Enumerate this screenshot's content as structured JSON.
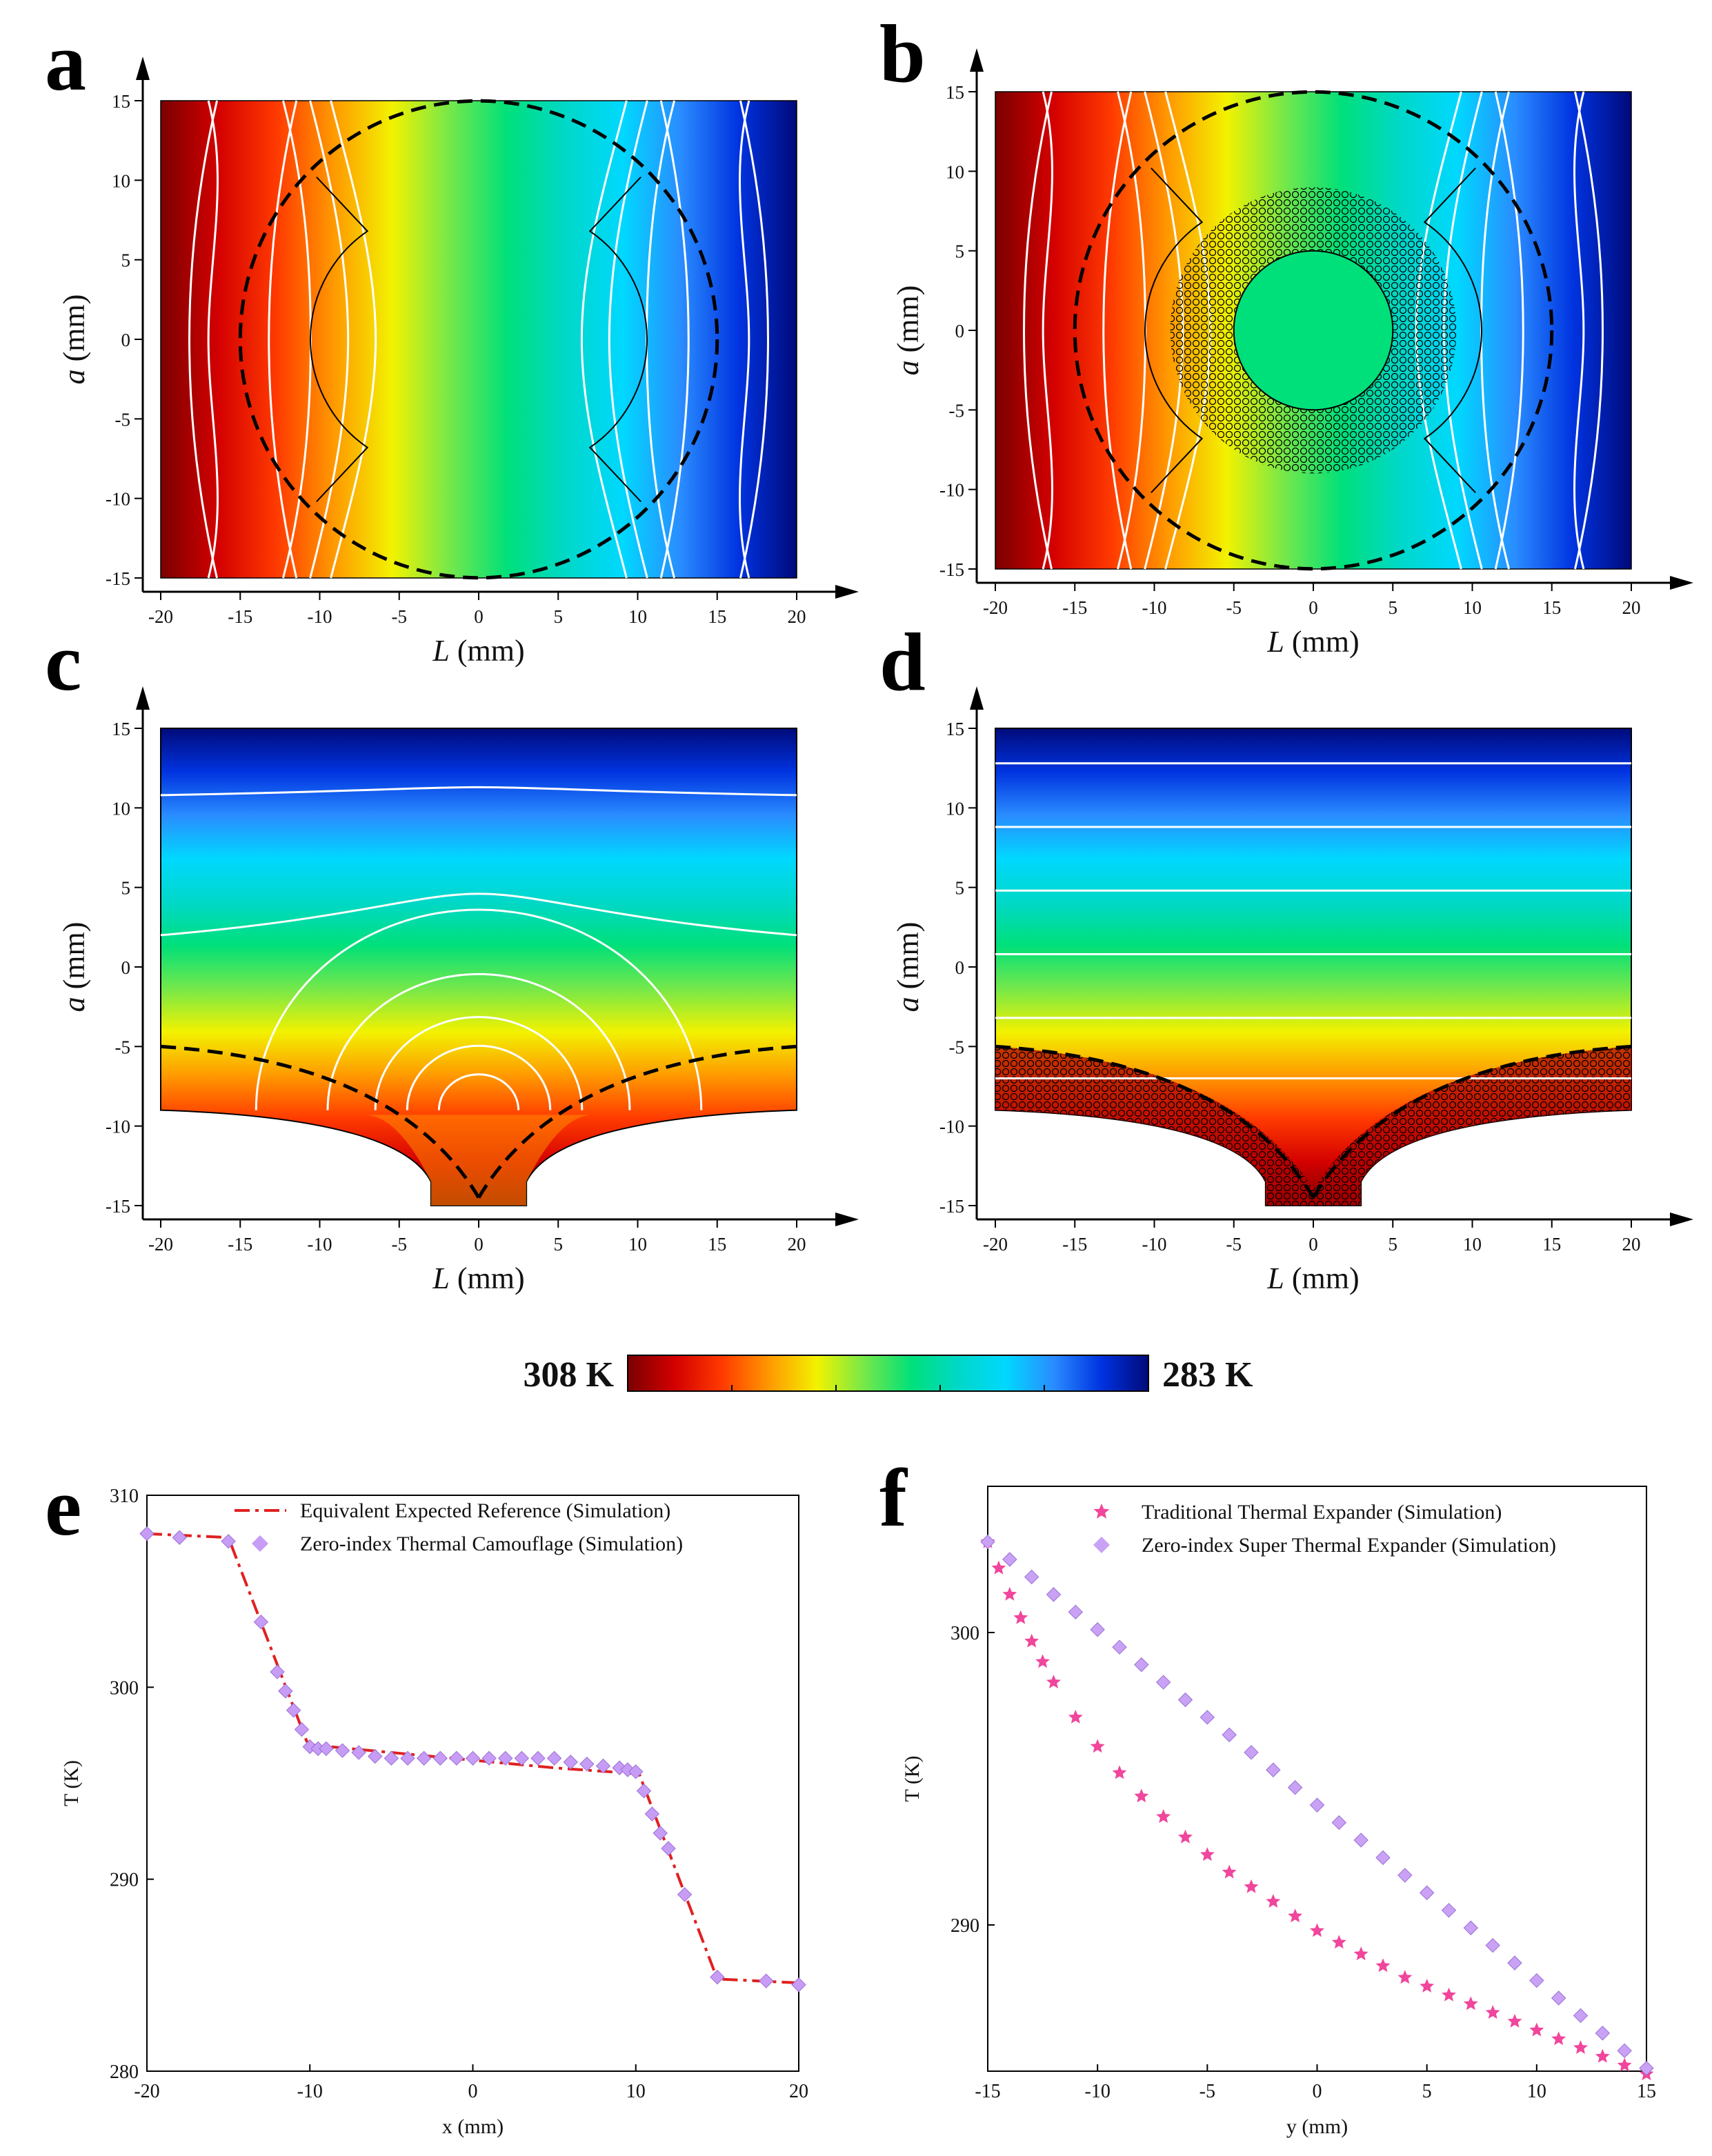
{
  "colors": {
    "colormap": [
      "#7a0000",
      "#d40000",
      "#ff3a00",
      "#ff9a00",
      "#f2f200",
      "#74e84a",
      "#00e07a",
      "#00d8c8",
      "#00d8ff",
      "#2a8cff",
      "#0033e0",
      "#000a7a"
    ],
    "isotherm": "#ffffff",
    "boundary": "#000000",
    "reference_line": "#e02020",
    "camouflage_marker": "#c79cf5",
    "traditional_marker": "#f0469c",
    "super_marker": "#c9a2f5"
  },
  "colorbar": {
    "max_label": "308 K",
    "min_label": "283 K",
    "colors": [
      "#7a0000",
      "#d40000",
      "#ff3a00",
      "#ff9a00",
      "#f2f200",
      "#74e84a",
      "#00e07a",
      "#00d8c8",
      "#00d8ff",
      "#2a8cff",
      "#0033e0",
      "#000a7a"
    ]
  },
  "chart_data": [
    {
      "panel": "a",
      "type": "heatmap",
      "xlabel_symbol": "L",
      "xlabel_unit": " (mm)",
      "ylabel_symbol": "a",
      "ylabel_unit": " (mm)",
      "xlim": [
        -20,
        20
      ],
      "ylim": [
        -15,
        15
      ],
      "xticks": [
        -20,
        -15,
        -10,
        -5,
        0,
        5,
        10,
        15,
        20
      ],
      "yticks": [
        -15,
        -10,
        -5,
        0,
        5,
        10,
        15
      ],
      "hot_side": "left",
      "max_K": 308,
      "min_K": 283
    },
    {
      "panel": "b",
      "type": "heatmap",
      "xlabel_symbol": "L",
      "xlabel_unit": " (mm)",
      "ylabel_symbol": "a",
      "ylabel_unit": " (mm)",
      "xlim": [
        -20,
        20
      ],
      "ylim": [
        -15,
        15
      ],
      "xticks": [
        -20,
        -15,
        -10,
        -5,
        0,
        5,
        10,
        15,
        20
      ],
      "yticks": [
        -15,
        -10,
        -5,
        0,
        5,
        10,
        15
      ],
      "hot_side": "left",
      "max_K": 308,
      "min_K": 283
    },
    {
      "panel": "c",
      "type": "heatmap",
      "xlabel_symbol": "L",
      "xlabel_unit": " (mm)",
      "ylabel_symbol": "a",
      "ylabel_unit": " (mm)",
      "xlim": [
        -20,
        20
      ],
      "ylim": [
        -15,
        15
      ],
      "xticks": [
        -20,
        -15,
        -10,
        -5,
        0,
        5,
        10,
        15,
        20
      ],
      "yticks": [
        -15,
        -10,
        -5,
        0,
        5,
        10,
        15
      ],
      "hot_side": "bottom",
      "max_K": 308,
      "min_K": 283
    },
    {
      "panel": "d",
      "type": "heatmap",
      "xlabel_symbol": "L",
      "xlabel_unit": " (mm)",
      "ylabel_symbol": "a",
      "ylabel_unit": " (mm)",
      "xlim": [
        -20,
        20
      ],
      "ylim": [
        -15,
        15
      ],
      "xticks": [
        -20,
        -15,
        -10,
        -5,
        0,
        5,
        10,
        15,
        20
      ],
      "yticks": [
        -15,
        -10,
        -5,
        0,
        5,
        10,
        15
      ],
      "hot_side": "bottom",
      "max_K": 308,
      "min_K": 283
    },
    {
      "panel": "e",
      "type": "line",
      "xlabel": "x (mm)",
      "ylabel": "T (K)",
      "xlim": [
        -20,
        20
      ],
      "ylim": [
        280,
        310
      ],
      "xticks": [
        -20,
        -10,
        0,
        10,
        20
      ],
      "yticks": [
        280,
        290,
        300,
        310
      ],
      "series": [
        {
          "name": "Equivalent Expected Reference (Simulation)",
          "style": "dash-dot",
          "x": [
            -20,
            -15,
            -10.2,
            -10,
            -5,
            0,
            5,
            10,
            10.2,
            15,
            20
          ],
          "y": [
            308,
            307.8,
            297.2,
            297.0,
            296.6,
            296.2,
            295.8,
            295.5,
            295.5,
            284.8,
            284.6
          ]
        },
        {
          "name": "Zero-index Thermal Camouflage (Simulation)",
          "style": "diamond",
          "x": [
            -20,
            -18,
            -15,
            -13,
            -12,
            -11.5,
            -11,
            -10.5,
            -10,
            -9.5,
            -9,
            -8,
            -7,
            -6,
            -5,
            -4,
            -3,
            -2,
            -1,
            0,
            1,
            2,
            3,
            4,
            5,
            6,
            7,
            8,
            9,
            9.5,
            10,
            10.5,
            11,
            11.5,
            12,
            13,
            15,
            18,
            20
          ],
          "y": [
            308,
            307.8,
            307.6,
            303.4,
            300.8,
            299.8,
            298.8,
            297.8,
            296.9,
            296.8,
            296.8,
            296.7,
            296.6,
            296.4,
            296.3,
            296.3,
            296.3,
            296.3,
            296.3,
            296.3,
            296.3,
            296.3,
            296.3,
            296.3,
            296.3,
            296.1,
            296.0,
            295.9,
            295.8,
            295.7,
            295.6,
            294.6,
            293.4,
            292.4,
            291.6,
            289.2,
            284.9,
            284.7,
            284.5
          ]
        }
      ]
    },
    {
      "panel": "f",
      "type": "scatter",
      "xlabel": "y (mm)",
      "ylabel": "T (K)",
      "xlim": [
        -15,
        15
      ],
      "ylim": [
        285,
        305
      ],
      "xticks": [
        -15,
        -10,
        -5,
        0,
        5,
        10,
        15
      ],
      "yticks": [
        290,
        300
      ],
      "series": [
        {
          "name": "Traditional Thermal Expander (Simulation)",
          "style": "star",
          "x": [
            -15,
            -14.5,
            -14,
            -13.5,
            -13,
            -12.5,
            -12,
            -11,
            -10,
            -9,
            -8,
            -7,
            -6,
            -5,
            -4,
            -3,
            -2,
            -1,
            0,
            1,
            2,
            3,
            4,
            5,
            6,
            7,
            8,
            9,
            10,
            11,
            12,
            13,
            14,
            15
          ],
          "y": [
            303.1,
            302.2,
            301.3,
            300.5,
            299.7,
            299.0,
            298.3,
            297.1,
            296.1,
            295.2,
            294.4,
            293.7,
            293.0,
            292.4,
            291.8,
            291.3,
            290.8,
            290.3,
            289.8,
            289.4,
            289.0,
            288.6,
            288.2,
            287.9,
            287.6,
            287.3,
            287.0,
            286.7,
            286.4,
            286.1,
            285.8,
            285.5,
            285.2,
            284.9
          ]
        },
        {
          "name": "Zero-index Super Thermal Expander (Simulation)",
          "style": "diamond",
          "x": [
            -15,
            -14,
            -13,
            -12,
            -11,
            -10,
            -9,
            -8,
            -7,
            -6,
            -5,
            -4,
            -3,
            -2,
            -1,
            0,
            1,
            2,
            3,
            4,
            5,
            6,
            7,
            8,
            9,
            10,
            11,
            12,
            13,
            14,
            15
          ],
          "y": [
            303.1,
            302.5,
            301.9,
            301.3,
            300.7,
            300.1,
            299.5,
            298.9,
            298.3,
            297.7,
            297.1,
            296.5,
            295.9,
            295.3,
            294.7,
            294.1,
            293.5,
            292.9,
            292.3,
            291.7,
            291.1,
            290.5,
            289.9,
            289.3,
            288.7,
            288.1,
            287.5,
            286.9,
            286.3,
            285.7,
            285.1
          ]
        }
      ]
    }
  ]
}
